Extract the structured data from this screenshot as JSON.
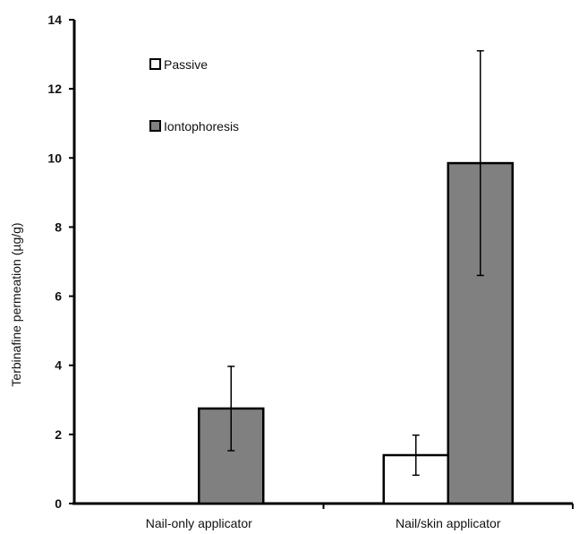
{
  "chart_data": {
    "type": "bar",
    "title": "",
    "xlabel": "",
    "ylabel": "Terbinafine permeation (µg/g)",
    "ylim": [
      0,
      14
    ],
    "yticks": [
      0,
      2,
      4,
      6,
      8,
      10,
      12,
      14
    ],
    "categories": [
      "Nail-only applicator",
      "Nail/skin applicator"
    ],
    "series": [
      {
        "name": "Passive",
        "color": "#ffffff",
        "values": [
          0,
          1.4
        ],
        "error": [
          null,
          0.58
        ]
      },
      {
        "name": "Iontophoresis",
        "color": "#808080",
        "values": [
          2.75,
          9.85
        ],
        "error": [
          1.22,
          3.25
        ]
      }
    ],
    "legend_position": "top-left",
    "grid": false
  }
}
